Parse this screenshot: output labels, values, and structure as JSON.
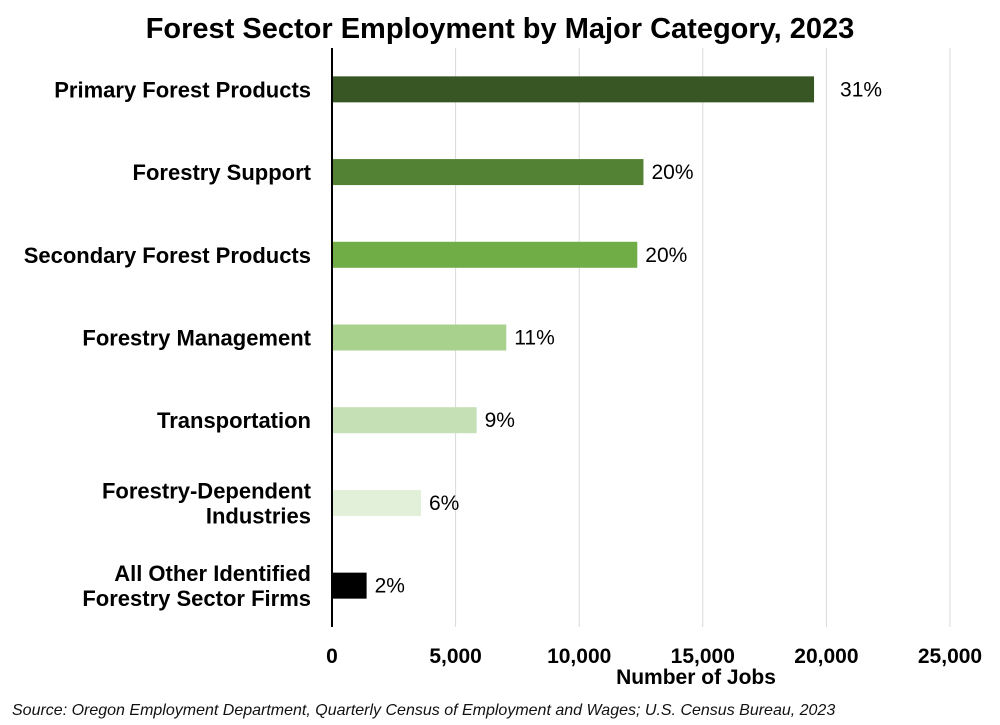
{
  "chart_data": {
    "type": "bar",
    "orientation": "horizontal",
    "title": "Forest Sector Employment by Major Category, 2023",
    "xlabel": "Number of Jobs",
    "ylabel": "",
    "categories": [
      [
        "Primary Forest Products"
      ],
      [
        "Forestry Support"
      ],
      [
        "Secondary Forest Products"
      ],
      [
        "Forestry Management"
      ],
      [
        "Transportation"
      ],
      [
        "Forestry-Dependent",
        "Industries"
      ],
      [
        "All Other Identified",
        "Forestry Sector Firms"
      ]
    ],
    "values": [
      19500,
      12600,
      12350,
      7050,
      5850,
      3600,
      1400
    ],
    "data_labels": [
      "31%",
      "20%",
      "20%",
      "11%",
      "9%",
      "6%",
      "2%"
    ],
    "colors": [
      "#375623",
      "#548235",
      "#70ad47",
      "#a9d18e",
      "#c5e0b4",
      "#e2f0d9",
      "#000000"
    ],
    "xlim": [
      0,
      25000
    ],
    "xticks": [
      0,
      5000,
      10000,
      15000,
      20000,
      25000
    ],
    "xtick_labels": [
      "0",
      "5,000",
      "10,000",
      "15,000",
      "20,000",
      "25,000"
    ],
    "grid": true,
    "legend": "none"
  },
  "source_note": "Source: Oregon Employment Department, Quarterly Census of Employment and Wages; U.S. Census Bureau, 2023"
}
